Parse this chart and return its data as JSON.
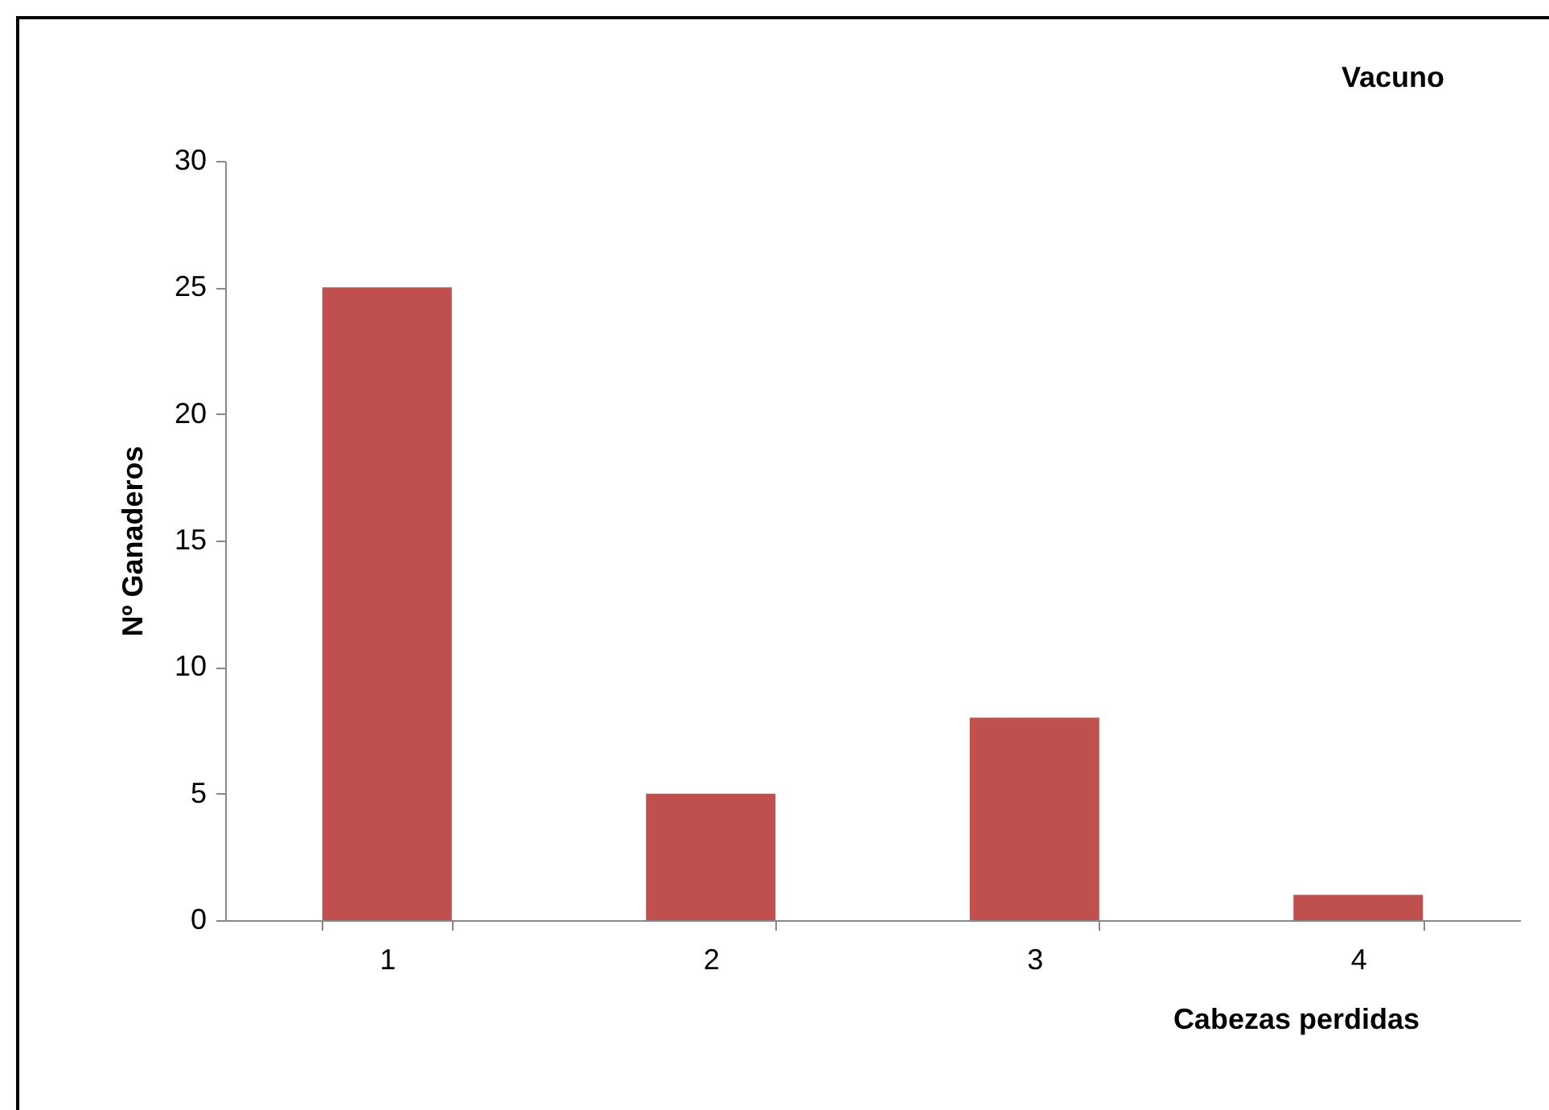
{
  "chart_data": {
    "type": "bar",
    "title": "Vacuno",
    "xlabel": "Cabezas perdidas",
    "ylabel": "Nº Ganaderos",
    "categories": [
      "1",
      "2",
      "3",
      "4"
    ],
    "values": [
      25,
      5,
      8,
      1
    ],
    "color": "#c0504d",
    "ylim": [
      0,
      30
    ],
    "yticks": [
      0,
      5,
      10,
      15,
      20,
      25,
      30
    ],
    "grid": false
  }
}
